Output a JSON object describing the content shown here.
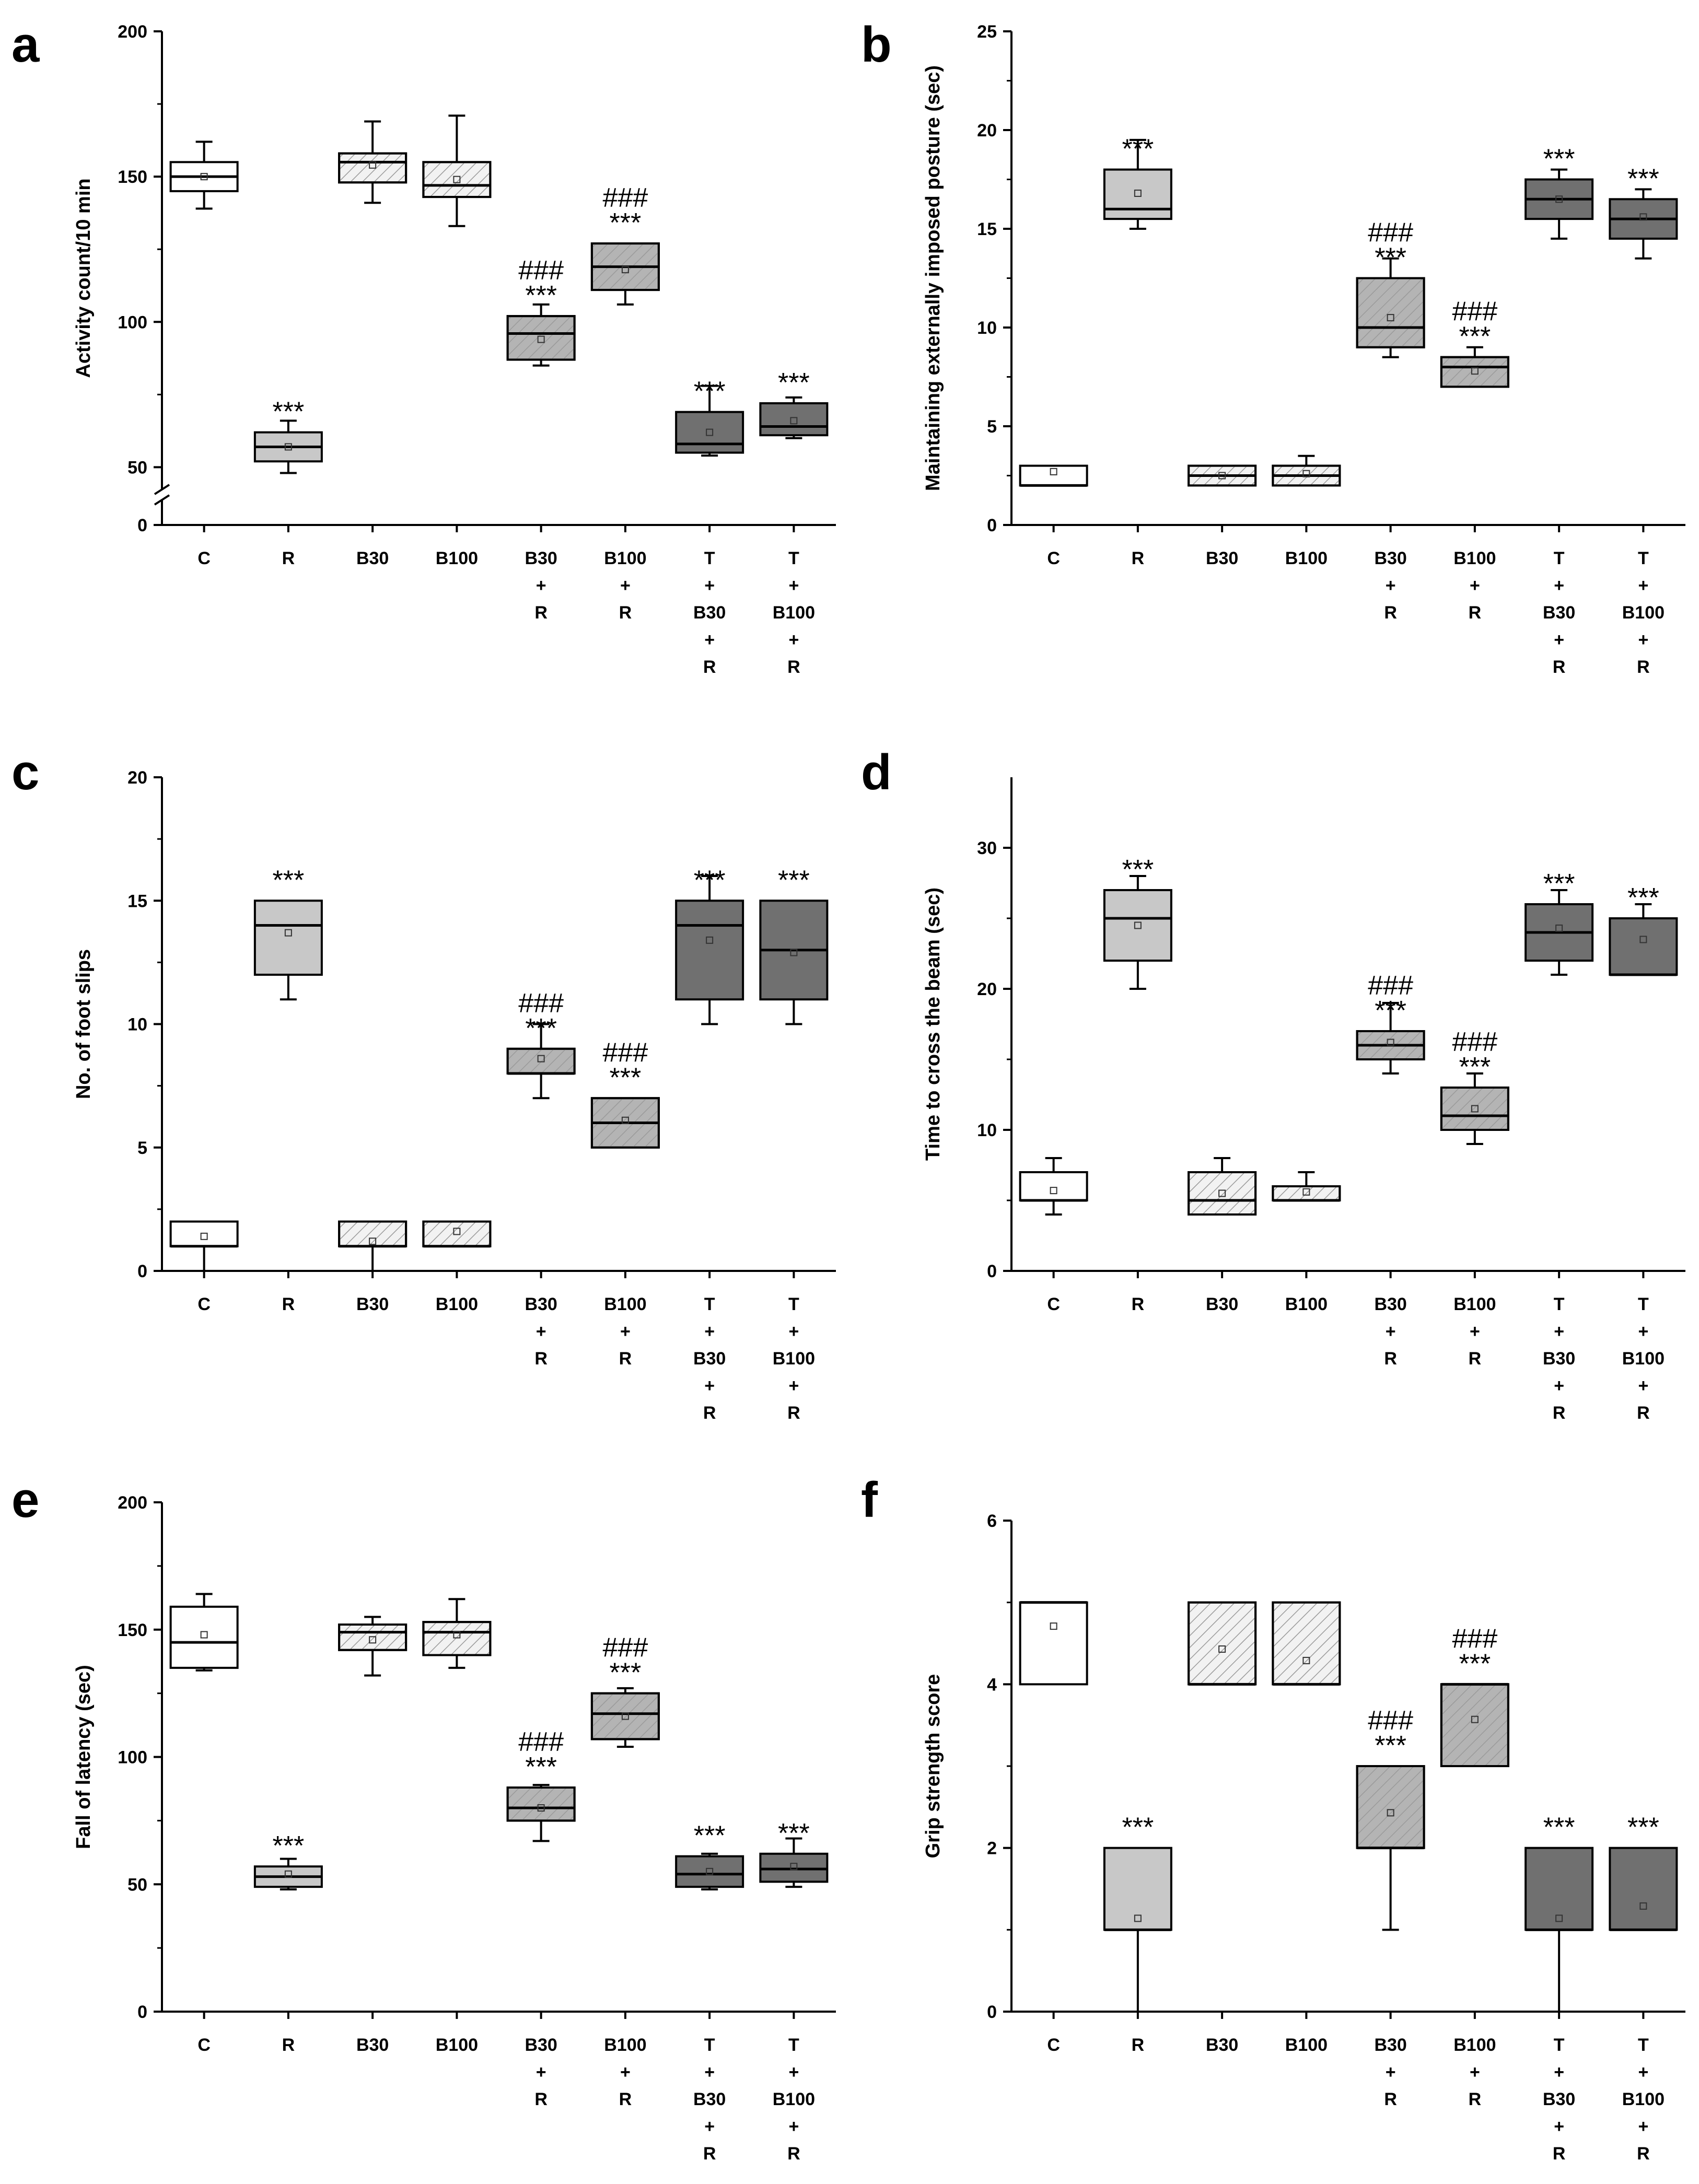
{
  "figure": {
    "panels": [
      {
        "id": "a",
        "label": "a"
      },
      {
        "id": "b",
        "label": "b"
      },
      {
        "id": "c",
        "label": "c"
      },
      {
        "id": "d",
        "label": "d"
      },
      {
        "id": "e",
        "label": "e"
      },
      {
        "id": "f",
        "label": "f"
      }
    ]
  },
  "colors": {
    "C": "#ffffff",
    "R": "#c8c8c8",
    "B": "#f2f2f2",
    "BR": "#b4b4b4",
    "TBR": "#707070",
    "hatch": "#9a9a9a",
    "axis": "#000000"
  },
  "chart_data": [
    {
      "id": "a",
      "type": "box",
      "title": "",
      "ylabel": "Activity count/10 min",
      "ylim": [
        0,
        200
      ],
      "axis_break": true,
      "yticks": [
        0,
        50,
        100,
        150,
        200
      ],
      "categories": [
        "C",
        "R",
        "B30",
        "B100",
        "B30 + R",
        "B100 + R",
        "T + B30 + R",
        "T + B100 + R"
      ],
      "category_lines": [
        [
          "C"
        ],
        [
          "R"
        ],
        [
          "B30"
        ],
        [
          "B100"
        ],
        [
          "B30",
          "+",
          "R"
        ],
        [
          "B100",
          "+",
          "R"
        ],
        [
          "T",
          "+",
          "B30",
          "+",
          "R"
        ],
        [
          "T",
          "+",
          "B100",
          "+",
          "R"
        ]
      ],
      "boxes": [
        {
          "min": 139,
          "q1": 145,
          "median": 150,
          "q3": 155,
          "max": 162,
          "mean": 150
        },
        {
          "min": 48,
          "q1": 52,
          "median": 57,
          "q3": 62,
          "max": 66,
          "mean": 57
        },
        {
          "min": 141,
          "q1": 148,
          "median": 155,
          "q3": 158,
          "max": 169,
          "mean": 154
        },
        {
          "min": 133,
          "q1": 143,
          "median": 147,
          "q3": 155,
          "max": 171,
          "mean": 149
        },
        {
          "min": 85,
          "q1": 87,
          "median": 96,
          "q3": 102,
          "max": 106,
          "mean": 94
        },
        {
          "min": 106,
          "q1": 111,
          "median": 119,
          "q3": 127,
          "max": 127,
          "mean": 118
        },
        {
          "min": 54,
          "q1": 55,
          "median": 58,
          "q3": 69,
          "max": 78,
          "mean": 62
        },
        {
          "min": 60,
          "q1": 61,
          "median": 64,
          "q3": 72,
          "max": 74,
          "mean": 66
        }
      ],
      "annotations": [
        "",
        "***",
        "",
        "",
        "###\n***",
        "###\n***",
        "***",
        "***"
      ]
    },
    {
      "id": "b",
      "type": "box",
      "title": "",
      "ylabel": "Maintaining externally imposed posture (sec)",
      "ylim": [
        0,
        25
      ],
      "axis_break": false,
      "yticks": [
        0,
        5,
        10,
        15,
        20,
        25
      ],
      "categories": [
        "C",
        "R",
        "B30",
        "B100",
        "B30 + R",
        "B100 + R",
        "T + B30 + R",
        "T + B100 + R"
      ],
      "category_lines": [
        [
          "C"
        ],
        [
          "R"
        ],
        [
          "B30"
        ],
        [
          "B100"
        ],
        [
          "B30",
          "+",
          "R"
        ],
        [
          "B100",
          "+",
          "R"
        ],
        [
          "T",
          "+",
          "B30",
          "+",
          "R"
        ],
        [
          "T",
          "+",
          "B100",
          "+",
          "R"
        ]
      ],
      "boxes": [
        {
          "min": 2,
          "q1": 2,
          "median": 2,
          "q3": 3,
          "max": 3,
          "mean": 2.7
        },
        {
          "min": 15,
          "q1": 15.5,
          "median": 16,
          "q3": 18,
          "max": 19.5,
          "mean": 16.8
        },
        {
          "min": 2,
          "q1": 2,
          "median": 2.5,
          "q3": 3,
          "max": 3,
          "mean": 2.5
        },
        {
          "min": 2,
          "q1": 2,
          "median": 2.5,
          "q3": 3,
          "max": 3.5,
          "mean": 2.6
        },
        {
          "min": 8.5,
          "q1": 9,
          "median": 10,
          "q3": 12.5,
          "max": 13.5,
          "mean": 10.5
        },
        {
          "min": 7,
          "q1": 7,
          "median": 8,
          "q3": 8.5,
          "max": 9,
          "mean": 7.8
        },
        {
          "min": 14.5,
          "q1": 15.5,
          "median": 16.5,
          "q3": 17.5,
          "max": 18,
          "mean": 16.5
        },
        {
          "min": 13.5,
          "q1": 14.5,
          "median": 15.5,
          "q3": 16.5,
          "max": 17,
          "mean": 15.6
        }
      ],
      "annotations": [
        "",
        "***",
        "",
        "",
        "###\n***",
        "###\n***",
        "***",
        "***"
      ]
    },
    {
      "id": "c",
      "type": "box",
      "title": "",
      "ylabel": "No. of foot slips",
      "ylim": [
        0,
        20
      ],
      "axis_break": false,
      "yticks": [
        0,
        5,
        10,
        15,
        20
      ],
      "categories": [
        "C",
        "R",
        "B30",
        "B100",
        "B30 + R",
        "B100 + R",
        "T + B30 + R",
        "T + B100 + R"
      ],
      "category_lines": [
        [
          "C"
        ],
        [
          "R"
        ],
        [
          "B30"
        ],
        [
          "B100"
        ],
        [
          "B30",
          "+",
          "R"
        ],
        [
          "B100",
          "+",
          "R"
        ],
        [
          "T",
          "+",
          "B30",
          "+",
          "R"
        ],
        [
          "T",
          "+",
          "B100",
          "+",
          "R"
        ]
      ],
      "boxes": [
        {
          "min": 0,
          "q1": 1,
          "median": 1,
          "q3": 2,
          "max": 2,
          "mean": 1.4
        },
        {
          "min": 11,
          "q1": 12,
          "median": 14,
          "q3": 15,
          "max": 15,
          "mean": 13.7
        },
        {
          "min": 0,
          "q1": 1,
          "median": 1,
          "q3": 2,
          "max": 2,
          "mean": 1.2
        },
        {
          "min": 1,
          "q1": 1,
          "median": 1,
          "q3": 2,
          "max": 2,
          "mean": 1.6
        },
        {
          "min": 7,
          "q1": 8,
          "median": 8,
          "q3": 9,
          "max": 10,
          "mean": 8.6
        },
        {
          "min": 5,
          "q1": 5,
          "median": 6,
          "q3": 7,
          "max": 7,
          "mean": 6.1
        },
        {
          "min": 10,
          "q1": 11,
          "median": 14,
          "q3": 15,
          "max": 16,
          "mean": 13.4
        },
        {
          "min": 10,
          "q1": 11,
          "median": 13,
          "q3": 15,
          "max": 15,
          "mean": 12.9
        }
      ],
      "annotations": [
        "",
        "***",
        "",
        "",
        "###\n***",
        "###\n***",
        "***",
        "***"
      ]
    },
    {
      "id": "d",
      "type": "box",
      "title": "",
      "ylabel": "Time to cross the beam (sec)",
      "ylim": [
        0,
        35
      ],
      "axis_break": false,
      "yticks": [
        0,
        10,
        20,
        30
      ],
      "categories": [
        "C",
        "R",
        "B30",
        "B100",
        "B30 + R",
        "B100 + R",
        "T + B30 + R",
        "T + B100 + R"
      ],
      "category_lines": [
        [
          "C"
        ],
        [
          "R"
        ],
        [
          "B30"
        ],
        [
          "B100"
        ],
        [
          "B30",
          "+",
          "R"
        ],
        [
          "B100",
          "+",
          "R"
        ],
        [
          "T",
          "+",
          "B30",
          "+",
          "R"
        ],
        [
          "T",
          "+",
          "B100",
          "+",
          "R"
        ]
      ],
      "boxes": [
        {
          "min": 4,
          "q1": 5,
          "median": 5,
          "q3": 7,
          "max": 8,
          "mean": 5.7
        },
        {
          "min": 20,
          "q1": 22,
          "median": 25,
          "q3": 27,
          "max": 28,
          "mean": 24.5
        },
        {
          "min": 4,
          "q1": 4,
          "median": 5,
          "q3": 7,
          "max": 8,
          "mean": 5.5
        },
        {
          "min": 5,
          "q1": 5,
          "median": 5,
          "q3": 6,
          "max": 7,
          "mean": 5.6
        },
        {
          "min": 14,
          "q1": 15,
          "median": 16,
          "q3": 17,
          "max": 19,
          "mean": 16.2
        },
        {
          "min": 9,
          "q1": 10,
          "median": 11,
          "q3": 13,
          "max": 14,
          "mean": 11.5
        },
        {
          "min": 21,
          "q1": 22,
          "median": 24,
          "q3": 26,
          "max": 27,
          "mean": 24.3
        },
        {
          "min": 21,
          "q1": 21,
          "median": 21,
          "q3": 25,
          "max": 26,
          "mean": 23.5
        }
      ],
      "annotations": [
        "",
        "***",
        "",
        "",
        "###\n***",
        "###\n***",
        "***",
        "***"
      ]
    },
    {
      "id": "e",
      "type": "box",
      "title": "",
      "ylabel": "Fall of latency (sec)",
      "ylim": [
        0,
        200
      ],
      "axis_break": false,
      "yticks": [
        0,
        50,
        100,
        150,
        200
      ],
      "categories": [
        "C",
        "R",
        "B30",
        "B100",
        "B30 + R",
        "B100 + R",
        "T + B30 + R",
        "T + B100 + R"
      ],
      "category_lines": [
        [
          "C"
        ],
        [
          "R"
        ],
        [
          "B30"
        ],
        [
          "B100"
        ],
        [
          "B30",
          "+",
          "R"
        ],
        [
          "B100",
          "+",
          "R"
        ],
        [
          "T",
          "+",
          "B30",
          "+",
          "R"
        ],
        [
          "T",
          "+",
          "B100",
          "+",
          "R"
        ]
      ],
      "boxes": [
        {
          "min": 134,
          "q1": 135,
          "median": 145,
          "q3": 159,
          "max": 164,
          "mean": 148
        },
        {
          "min": 48,
          "q1": 49,
          "median": 53,
          "q3": 57,
          "max": 60,
          "mean": 54
        },
        {
          "min": 132,
          "q1": 142,
          "median": 149,
          "q3": 152,
          "max": 155,
          "mean": 146
        },
        {
          "min": 135,
          "q1": 140,
          "median": 149,
          "q3": 153,
          "max": 162,
          "mean": 148
        },
        {
          "min": 67,
          "q1": 75,
          "median": 80,
          "q3": 88,
          "max": 89,
          "mean": 80
        },
        {
          "min": 104,
          "q1": 107,
          "median": 117,
          "q3": 125,
          "max": 127,
          "mean": 116
        },
        {
          "min": 48,
          "q1": 49,
          "median": 54,
          "q3": 61,
          "max": 62,
          "mean": 55
        },
        {
          "min": 49,
          "q1": 51,
          "median": 56,
          "q3": 62,
          "max": 68,
          "mean": 57
        }
      ],
      "annotations": [
        "",
        "***",
        "",
        "",
        "###\n***",
        "###\n***",
        "***",
        "***"
      ]
    },
    {
      "id": "f",
      "type": "box",
      "title": "",
      "ylabel": "Grip strength score",
      "ylim": [
        0,
        6
      ],
      "axis_break": false,
      "yticks": [
        0,
        2,
        4,
        6
      ],
      "categories": [
        "C",
        "R",
        "B30",
        "B100",
        "B30 + R",
        "B100 + R",
        "T + B30 + R",
        "T + B100 + R"
      ],
      "category_lines": [
        [
          "C"
        ],
        [
          "R"
        ],
        [
          "B30"
        ],
        [
          "B100"
        ],
        [
          "B30",
          "+",
          "R"
        ],
        [
          "B100",
          "+",
          "R"
        ],
        [
          "T",
          "+",
          "B30",
          "+",
          "R"
        ],
        [
          "T",
          "+",
          "B100",
          "+",
          "R"
        ]
      ],
      "boxes": [
        {
          "min": 4,
          "q1": 4,
          "median": 5,
          "q3": 5,
          "max": 5,
          "mean": 4.71
        },
        {
          "min": 0,
          "q1": 1,
          "median": 1,
          "q3": 2,
          "max": 2,
          "mean": 1.14
        },
        {
          "min": 4,
          "q1": 4,
          "median": 4,
          "q3": 5,
          "max": 5,
          "mean": 4.43
        },
        {
          "min": 4,
          "q1": 4,
          "median": 4,
          "q3": 5,
          "max": 5,
          "mean": 4.29
        },
        {
          "min": 1,
          "q1": 2,
          "median": 2,
          "q3": 3,
          "max": 3,
          "mean": 2.43
        },
        {
          "min": 3,
          "q1": 3,
          "median": 4,
          "q3": 4,
          "max": 4,
          "mean": 3.57
        },
        {
          "min": 0,
          "q1": 1,
          "median": 1,
          "q3": 2,
          "max": 2,
          "mean": 1.14
        },
        {
          "min": 1,
          "q1": 1,
          "median": 1,
          "q3": 2,
          "max": 2,
          "mean": 1.29
        }
      ],
      "annotations": [
        "",
        "***",
        "",
        "",
        "###\n***",
        "###\n***",
        "***",
        "***"
      ]
    }
  ]
}
